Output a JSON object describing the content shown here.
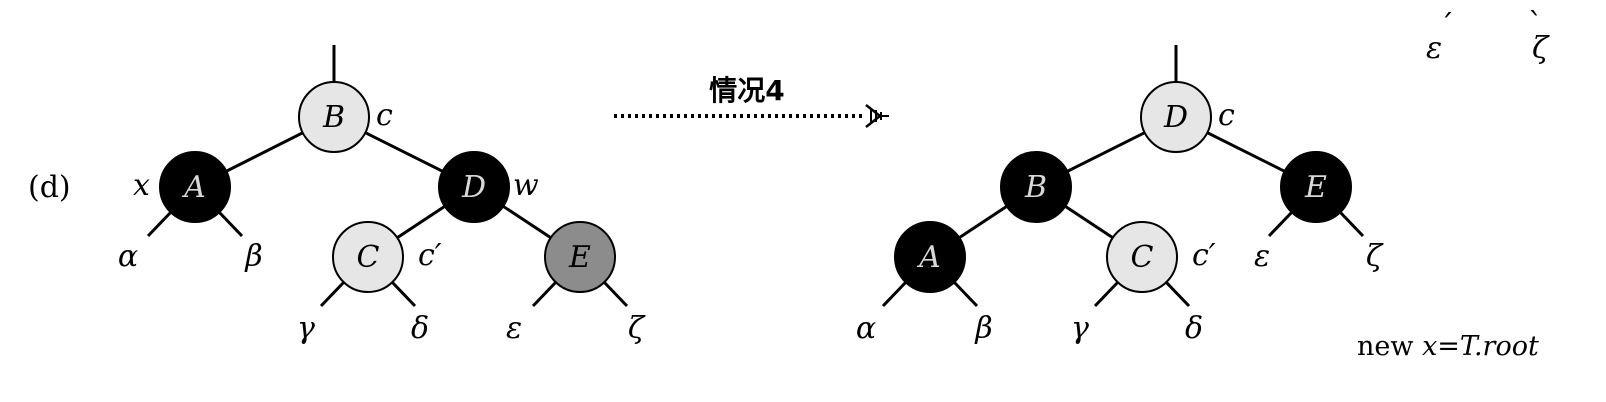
{
  "case_label": "(d)",
  "transition": {
    "label": "情况4"
  },
  "corner_labels": {
    "epsilon_prime": "ε",
    "zeta_prime": "ζ"
  },
  "footer": {
    "prefix": "new ",
    "x": "x",
    "eq": "=",
    "root": "T.root"
  },
  "colors": {
    "black": "#000000",
    "white": "#e6e6e6",
    "gray": "#8c8c8c"
  },
  "before": {
    "nodes": [
      {
        "id": "B",
        "label": "B",
        "color": "white",
        "tag": "c"
      },
      {
        "id": "A",
        "label": "A",
        "color": "black",
        "tag": "x"
      },
      {
        "id": "D",
        "label": "D",
        "color": "black",
        "tag": "w"
      },
      {
        "id": "C",
        "label": "C",
        "color": "white",
        "tag": "c′"
      },
      {
        "id": "E",
        "label": "E",
        "color": "gray",
        "tag": ""
      }
    ],
    "subtrees": [
      "α",
      "β",
      "γ",
      "δ",
      "ε",
      "ζ"
    ]
  },
  "after": {
    "nodes": [
      {
        "id": "D",
        "label": "D",
        "color": "white",
        "tag": "c"
      },
      {
        "id": "B",
        "label": "B",
        "color": "black",
        "tag": ""
      },
      {
        "id": "E",
        "label": "E",
        "color": "black",
        "tag": ""
      },
      {
        "id": "A",
        "label": "A",
        "color": "black",
        "tag": ""
      },
      {
        "id": "C",
        "label": "C",
        "color": "white",
        "tag": "c′"
      }
    ],
    "subtrees": [
      "α",
      "β",
      "γ",
      "δ",
      "ε",
      "ζ"
    ]
  }
}
